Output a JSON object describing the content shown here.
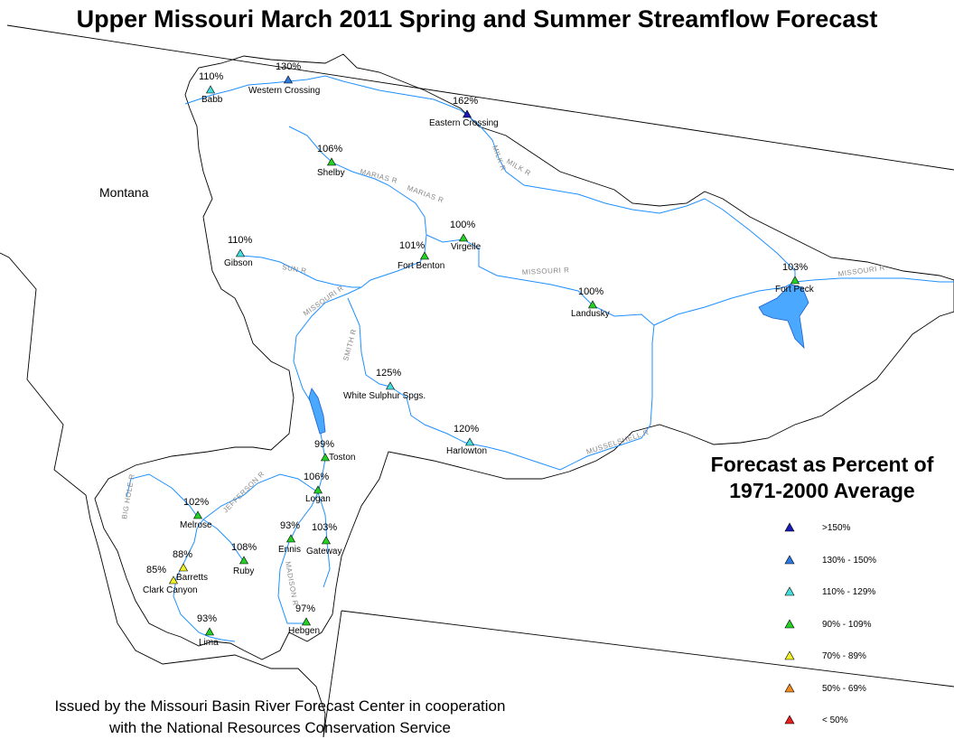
{
  "title": "Upper Missouri March 2011 Spring and Summer Streamflow Forecast",
  "state_label": "Montana",
  "legend": {
    "title_line1": "Forecast as Percent of",
    "title_line2": "1971-2000 Average",
    "items": [
      {
        "label": ">150%",
        "color": "#1a1ab4"
      },
      {
        "label": "130% - 150%",
        "color": "#2a78e0"
      },
      {
        "label": "110% - 129%",
        "color": "#45dcdc"
      },
      {
        "label": "90% - 109%",
        "color": "#25d025"
      },
      {
        "label": "70% - 89%",
        "color": "#f0f028"
      },
      {
        "label": "50% - 69%",
        "color": "#f08c1e"
      },
      {
        "label": "< 50%",
        "color": "#e61e1e"
      }
    ]
  },
  "issued": {
    "line1": "Issued by the Missouri Basin River Forecast Center in cooperation",
    "line2": "with the National Resources Conservation Service"
  },
  "stations": [
    {
      "name": "Babb",
      "pct": "110%",
      "category": 2
    },
    {
      "name": "Western Crossing",
      "pct": "130%",
      "category": 1
    },
    {
      "name": "Eastern Crossing",
      "pct": "162%",
      "category": 0
    },
    {
      "name": "Shelby",
      "pct": "106%",
      "category": 3
    },
    {
      "name": "Virgelle",
      "pct": "100%",
      "category": 3
    },
    {
      "name": "Fort Benton",
      "pct": "101%",
      "category": 3
    },
    {
      "name": "Gibson",
      "pct": "110%",
      "category": 2
    },
    {
      "name": "Fort Peck",
      "pct": "103%",
      "category": 3
    },
    {
      "name": "Landusky",
      "pct": "100%",
      "category": 3
    },
    {
      "name": "White Sulphur Spgs.",
      "pct": "125%",
      "category": 2
    },
    {
      "name": "Harlowton",
      "pct": "120%",
      "category": 2
    },
    {
      "name": "Toston",
      "pct": "99%",
      "category": 3
    },
    {
      "name": "Logan",
      "pct": "106%",
      "category": 3
    },
    {
      "name": "Melrose",
      "pct": "102%",
      "category": 3
    },
    {
      "name": "Ennis",
      "pct": "93%",
      "category": 3
    },
    {
      "name": "Gateway",
      "pct": "103%",
      "category": 3
    },
    {
      "name": "Ruby",
      "pct": "108%",
      "category": 3
    },
    {
      "name": "Barretts",
      "pct": "88%",
      "category": 4
    },
    {
      "name": "Clark Canyon",
      "pct": "85%",
      "category": 4
    },
    {
      "name": "Lima",
      "pct": "93%",
      "category": 3
    },
    {
      "name": "Hebgen",
      "pct": "97%",
      "category": 3
    }
  ],
  "rivers": [
    "MILK R",
    "MILK R",
    "MARIAS R",
    "MARIAS R",
    "MISSOURI R",
    "MISSOURI R",
    "MISSOURI R",
    "SUN R",
    "SMITH R",
    "MUSSELSHELL R",
    "BIG HOLE R",
    "JEFFERSON R",
    "MADISON R"
  ],
  "colors": {
    "river": "#1e90ff",
    "lake": "#4aa8ff",
    "boundary": "#000000"
  }
}
